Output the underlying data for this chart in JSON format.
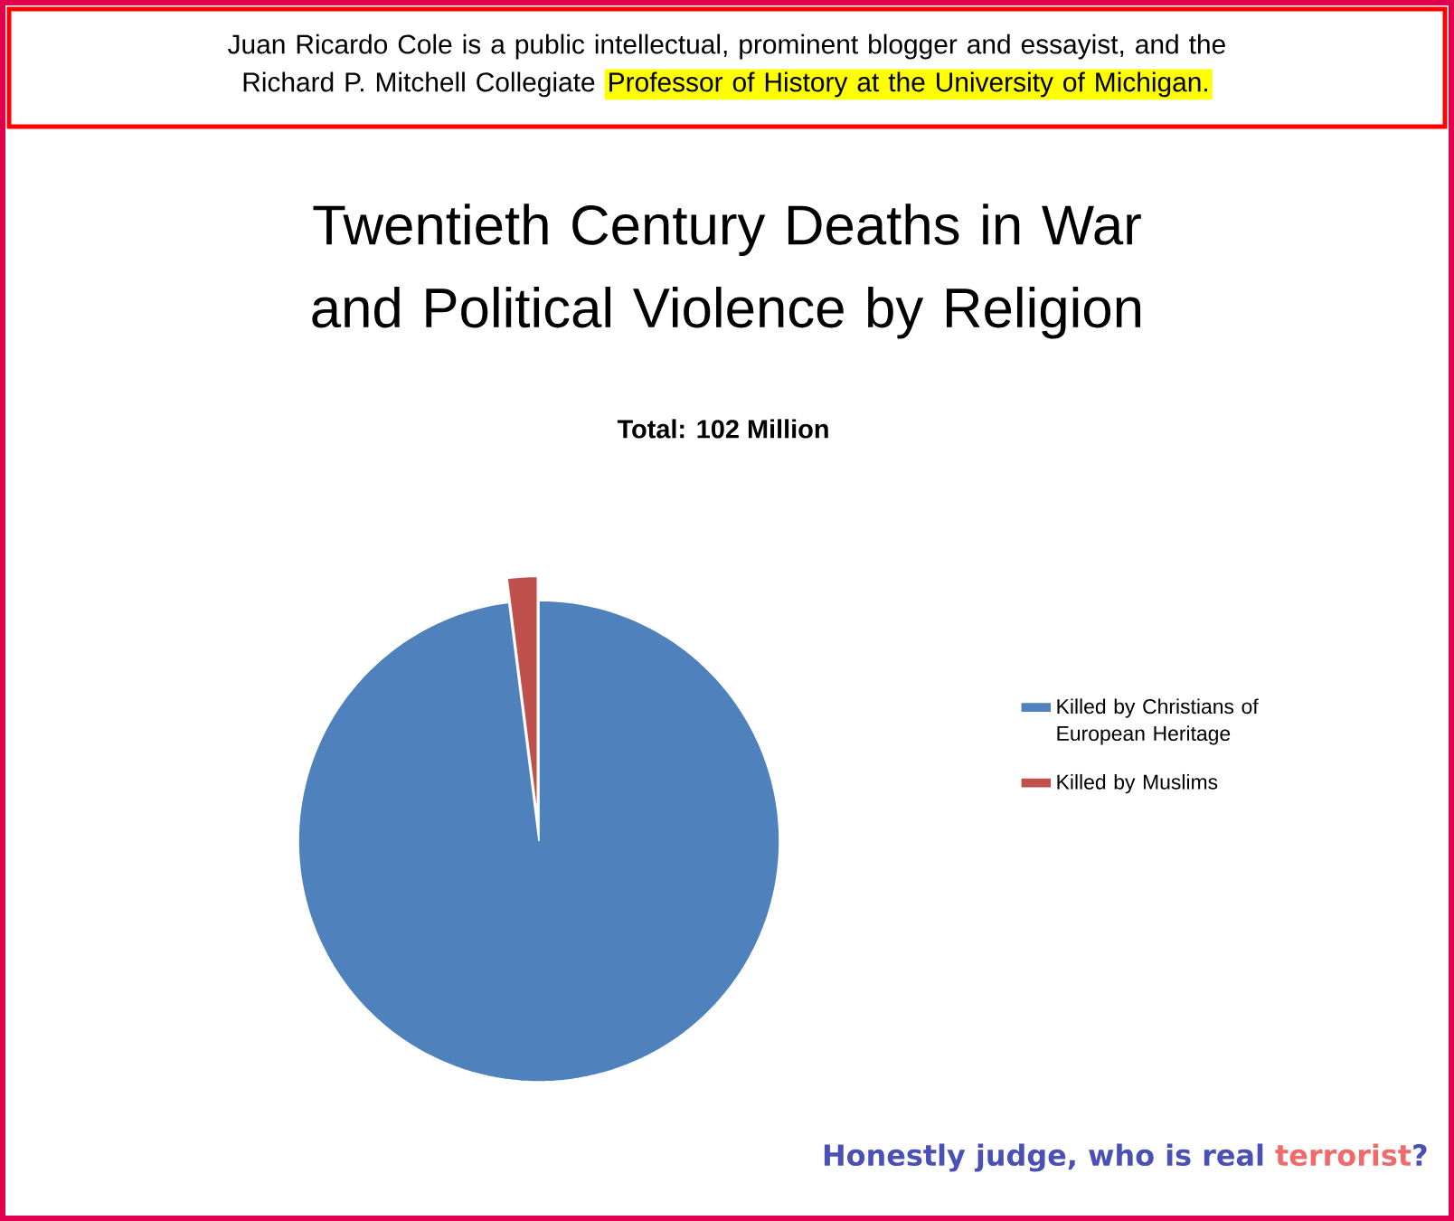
{
  "chart_data": {
    "type": "pie",
    "title": "Twentieth Century Deaths in War and Political Violence by Religion",
    "subtitle": "Total:  102 Million",
    "categories": [
      "Killed by Christians of European Heritage",
      "Killed by Muslims"
    ],
    "values": [
      98,
      2
    ],
    "colors": [
      "#4f81bd",
      "#c0504d"
    ],
    "legend": "right",
    "annotations": [
      "Juan Ricardo Cole is a public intellectual, prominent blogger and essayist, and the Richard P. Mitchell Collegiate",
      "Professor of History at the University of Michigan.",
      "Honestly judge, who is real",
      "terrorist",
      "?"
    ]
  }
}
